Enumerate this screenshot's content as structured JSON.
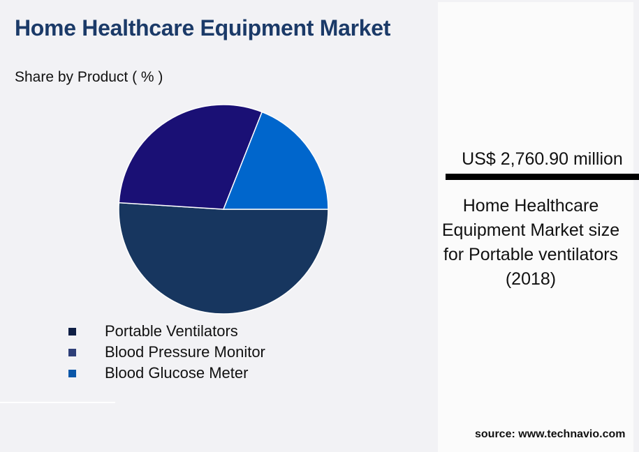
{
  "header": {
    "title": "Home Healthcare Equipment Market",
    "subtitle": "Share by Product ( % )"
  },
  "legend": [
    {
      "label": "Portable Ventilators",
      "color": "#0f1f45"
    },
    {
      "label": "Blood Pressure Monitor",
      "color": "#2e3f78"
    },
    {
      "label": "Blood Glucose Meter",
      "color": "#0a57a8"
    }
  ],
  "highlight": {
    "value": "US$ 2,760.90 million",
    "description": "Home Healthcare Equipment Market size for Portable ventilators (2018)"
  },
  "source": "source: www.technavio.com",
  "chart_data": {
    "type": "pie",
    "title": "Home Healthcare Equipment Market",
    "subtitle": "Share by Product ( % )",
    "categories": [
      "Portable Ventilators",
      "Blood Pressure Monitor",
      "Blood Glucose Meter"
    ],
    "values": [
      51,
      30,
      19
    ],
    "colors": [
      "#17365f",
      "#1a1075",
      "#0066cc"
    ],
    "start_angle_deg": 0,
    "direction": "clockwise-from-east",
    "legend_position": "bottom",
    "data_labels": false
  }
}
